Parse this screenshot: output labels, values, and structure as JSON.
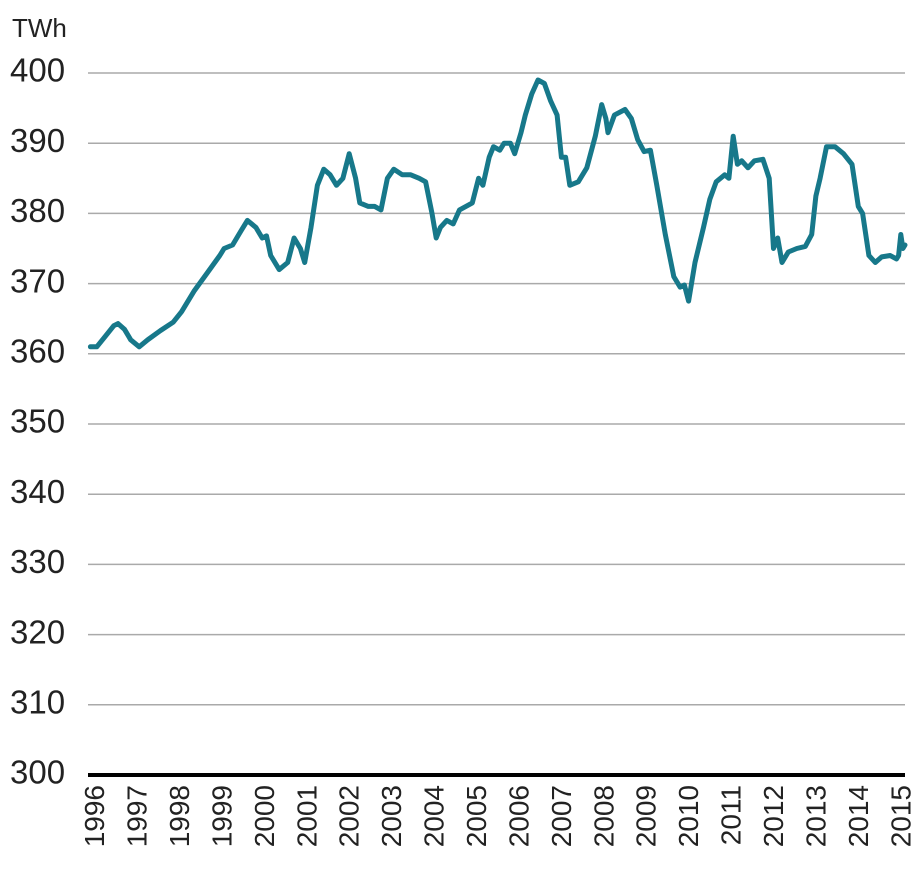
{
  "chart_data": {
    "type": "line",
    "y_label": "TWh",
    "x": [
      1995.85,
      1996.0,
      1996.2,
      1996.4,
      1996.5,
      1996.65,
      1996.8,
      1997.0,
      1997.2,
      1997.5,
      1997.8,
      1998.0,
      1998.3,
      1998.6,
      1998.9,
      1999.0,
      1999.2,
      1999.4,
      1999.55,
      1999.75,
      1999.9,
      2000.0,
      2000.1,
      2000.3,
      2000.5,
      2000.65,
      2000.8,
      2000.9,
      2001.05,
      2001.2,
      2001.35,
      2001.5,
      2001.65,
      2001.8,
      2001.95,
      2002.1,
      2002.2,
      2002.4,
      2002.55,
      2002.7,
      2002.85,
      2003.0,
      2003.2,
      2003.4,
      2003.6,
      2003.75,
      2003.9,
      2004.0,
      2004.1,
      2004.25,
      2004.4,
      2004.55,
      2004.7,
      2004.85,
      2005.0,
      2005.1,
      2005.25,
      2005.35,
      2005.5,
      2005.6,
      2005.75,
      2005.85,
      2006.0,
      2006.1,
      2006.25,
      2006.4,
      2006.55,
      2006.7,
      2006.85,
      2006.95,
      2007.05,
      2007.15,
      2007.35,
      2007.55,
      2007.75,
      2007.9,
      2008.0,
      2008.05,
      2008.2,
      2008.45,
      2008.6,
      2008.75,
      2008.9,
      2009.05,
      2009.2,
      2009.4,
      2009.6,
      2009.75,
      2009.85,
      2009.95,
      2010.1,
      2010.3,
      2010.45,
      2010.6,
      2010.8,
      2010.9,
      2011.0,
      2011.1,
      2011.2,
      2011.35,
      2011.5,
      2011.7,
      2011.85,
      2011.95,
      2012.05,
      2012.15,
      2012.3,
      2012.5,
      2012.7,
      2012.85,
      2012.95,
      2013.05,
      2013.2,
      2013.4,
      2013.6,
      2013.8,
      2013.95,
      2014.05,
      2014.2,
      2014.35,
      2014.5,
      2014.7,
      2014.85,
      2014.9,
      2014.95,
      2015.0,
      2015.05
    ],
    "series": [
      {
        "color": "#17788a",
        "values": [
          361,
          361,
          362.5,
          364,
          364.3,
          363.5,
          362,
          361,
          362,
          363.3,
          364.5,
          366,
          369,
          371.5,
          374,
          375,
          375.5,
          377.5,
          379,
          378,
          376.5,
          376.8,
          374,
          372,
          373,
          376.5,
          375,
          373,
          378,
          384,
          386.3,
          385.5,
          384,
          385,
          388.5,
          385,
          381.5,
          381,
          381,
          380.5,
          385,
          386.3,
          385.5,
          385.5,
          385,
          384.5,
          380,
          376.5,
          378,
          379,
          378.5,
          380.5,
          381,
          381.5,
          385,
          384,
          388,
          389.5,
          389,
          390,
          390,
          388.5,
          391.5,
          394,
          397,
          399,
          398.5,
          396,
          394,
          388,
          388,
          384,
          384.5,
          386.5,
          391,
          395.5,
          393.5,
          391.5,
          394,
          394.8,
          393.5,
          390.5,
          388.8,
          389,
          384,
          377,
          371,
          369.5,
          369.8,
          367.5,
          373,
          378,
          382,
          384.5,
          385.5,
          385,
          391,
          387,
          387.5,
          386.5,
          387.5,
          387.7,
          385,
          375,
          376.5,
          373,
          374.5,
          375,
          375.3,
          377,
          382.5,
          385,
          389.5,
          389.5,
          388.5,
          387,
          381,
          380,
          374,
          373,
          373.8,
          374,
          373.5,
          374,
          377,
          375,
          375.5
        ]
      }
    ],
    "xlim": [
      1995.84,
      2015.05
    ],
    "xticks": [
      1996,
      1997,
      1998,
      1999,
      2000,
      2001,
      2002,
      2003,
      2004,
      2005,
      2006,
      2007,
      2008,
      2009,
      2010,
      2011,
      2012,
      2013,
      2014,
      2015
    ],
    "ylim": [
      300,
      400
    ],
    "yticks": [
      300,
      310,
      320,
      330,
      340,
      350,
      360,
      370,
      380,
      390,
      400
    ],
    "grid": true
  }
}
